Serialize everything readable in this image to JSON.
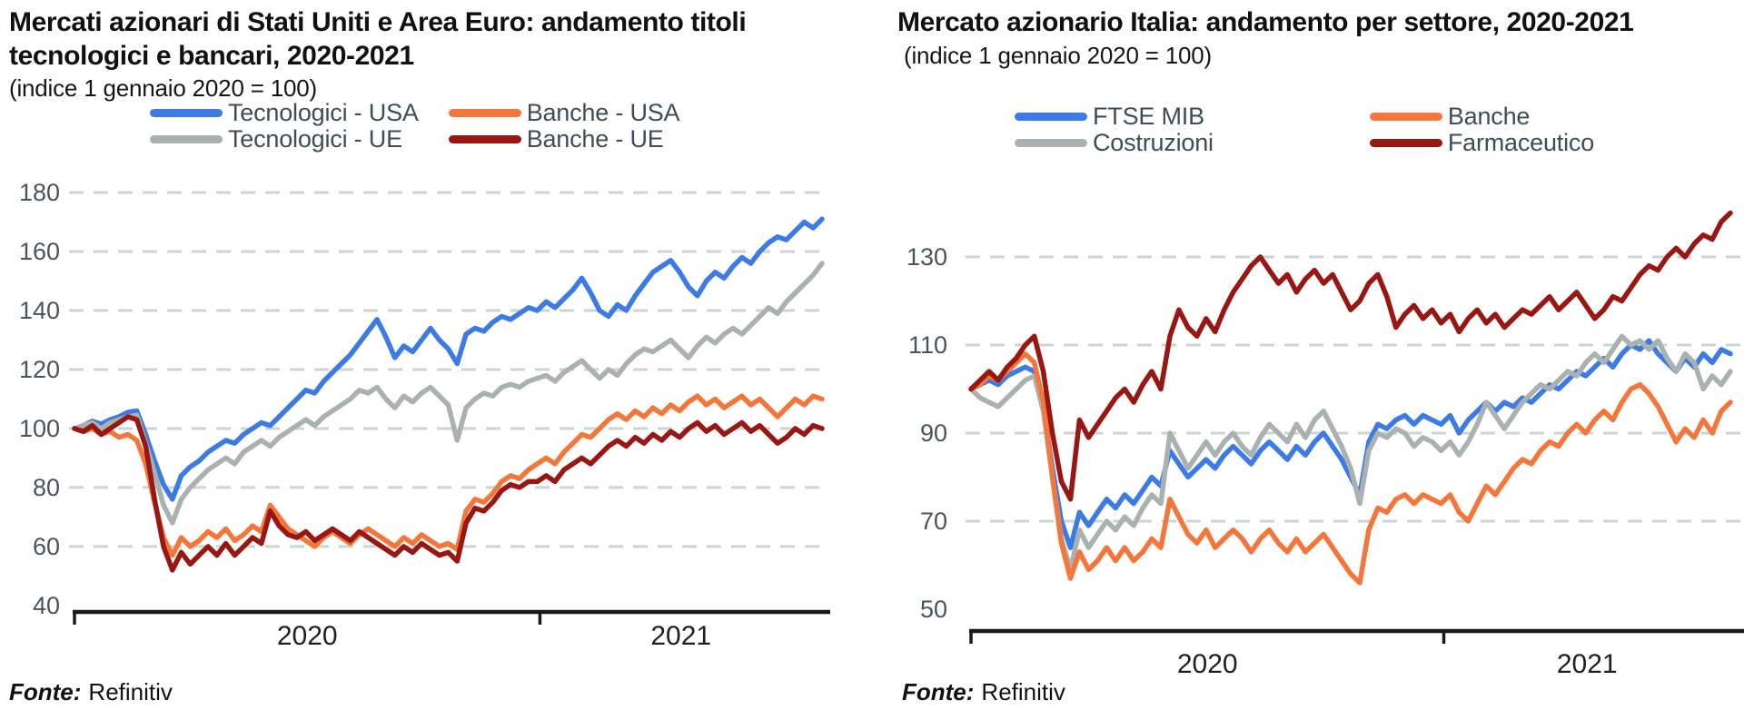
{
  "page": {
    "background": "#FFFFFF"
  },
  "styles": {
    "grid_color": "#CBD5D1",
    "axis_color": "#1A1A1A",
    "ytick_color": "#4A555A",
    "xtick_color": "#1F1F1F",
    "legend_text_color": "#3F4E54",
    "title_color": "#111111"
  },
  "chart_data": [
    {
      "type": "line",
      "title": "Mercati azionari di Stati Uniti e Area Euro: andamento titoli tecnologici e bancari, 2020-2021",
      "title_display_lines": [
        "Mercati azionari di Stati Uniti e Area Euro: andamento titoli",
        "tecnologici e bancari, 2020-2021"
      ],
      "subtitle": "(indice 1 gennaio 2020 = 100)",
      "source_label": "Fonte:",
      "source_value": "Refinitiv",
      "x_axis": {
        "tick_labels": [
          "2020",
          "2021"
        ],
        "boundary_week": 52.3,
        "weeks_total": 84
      },
      "ylim": [
        37.8,
        182.8
      ],
      "yticks": [
        40,
        60,
        80,
        100,
        120,
        140,
        160,
        180
      ],
      "grid": "horizontal-dashed",
      "legend_position": "top",
      "series": [
        {
          "name": "Tecnologici - USA",
          "color": "#3C7AE5",
          "values": [
            100,
            101,
            102.5,
            101.5,
            103,
            104,
            105.5,
            106,
            98,
            89,
            81,
            76,
            84,
            87,
            89,
            92,
            94,
            96,
            95,
            98,
            100,
            102,
            101,
            104,
            107,
            110,
            113,
            112,
            116,
            119,
            122,
            125,
            129,
            133,
            137,
            131,
            124,
            128,
            126,
            130,
            134,
            130,
            127,
            122,
            132,
            134,
            133,
            136,
            138,
            137,
            139,
            141,
            140,
            143,
            141,
            144,
            147,
            151,
            146,
            140,
            138,
            142,
            140,
            145,
            149,
            153,
            155,
            157,
            153,
            148,
            145,
            150,
            153,
            151,
            155,
            158,
            156,
            160,
            163,
            165,
            164,
            167,
            170,
            168,
            171
          ]
        },
        {
          "name": "Banche - USA",
          "color": "#F4763A",
          "values": [
            100,
            99,
            100,
            98,
            99,
            97,
            98,
            96,
            88,
            75,
            63,
            57,
            63,
            60,
            62,
            65,
            63,
            66,
            62,
            64,
            67,
            65,
            74,
            70,
            66,
            64,
            62,
            60,
            63,
            65,
            63,
            61,
            64,
            66,
            64,
            62,
            60,
            63,
            61,
            64,
            62,
            60,
            61,
            59,
            72,
            76,
            75,
            78,
            82,
            84,
            83,
            86,
            88,
            90,
            88,
            92,
            95,
            98,
            97,
            100,
            103,
            105,
            103,
            106,
            104,
            107,
            105,
            108,
            106,
            109,
            111,
            108,
            110,
            107,
            109,
            111,
            108,
            110,
            107,
            104,
            107,
            110,
            108,
            111,
            110
          ]
        },
        {
          "name": "Tecnologici - UE",
          "color": "#A9B2B0",
          "values": [
            100,
            101,
            102,
            100,
            102,
            103,
            104,
            104.5,
            95,
            85,
            74,
            68,
            76,
            80,
            83,
            86,
            88,
            90,
            88,
            92,
            94,
            96,
            94,
            97,
            99,
            101,
            103,
            101,
            104,
            106,
            108,
            110,
            113,
            112,
            114,
            110,
            107,
            111,
            109,
            112,
            114,
            111,
            108,
            96,
            107,
            110,
            112,
            111,
            114,
            115,
            114,
            116,
            117,
            118,
            116,
            119,
            121,
            123,
            120,
            117,
            120,
            118,
            122,
            125,
            127,
            126,
            128,
            130,
            127,
            124,
            128,
            131,
            129,
            132,
            134,
            132,
            135,
            138,
            141,
            139,
            143,
            146,
            149,
            152,
            156
          ]
        },
        {
          "name": "Banche - UE",
          "color": "#991712",
          "values": [
            100,
            99,
            101,
            98,
            100,
            102,
            104,
            103,
            94,
            76,
            60,
            52,
            58,
            54,
            57,
            60,
            57,
            61,
            57,
            60,
            63,
            61,
            72,
            67,
            64,
            63,
            65,
            62,
            64,
            66,
            64,
            62,
            65,
            63,
            61,
            59,
            57,
            60,
            58,
            61,
            59,
            57,
            58,
            55,
            68,
            73,
            72,
            75,
            79,
            81,
            80,
            82,
            82,
            84,
            82,
            86,
            88,
            90,
            88,
            91,
            94,
            96,
            94,
            97,
            95,
            98,
            96,
            99,
            97,
            100,
            102,
            99,
            101,
            98,
            100,
            102,
            99,
            101,
            98,
            95,
            97,
            100,
            98,
            101,
            100
          ]
        }
      ]
    },
    {
      "type": "line",
      "title": "Mercato azionario Italia: andamento per settore, 2020-2021",
      "title_display_lines": [
        "Mercato azionario Italia: andamento per settore, 2020-2021"
      ],
      "subtitle": "(indice 1 gennaio 2020 = 100)",
      "source_label": "Fonte:",
      "source_value": "Refinitiv",
      "x_axis": {
        "tick_labels": [
          "2020",
          "2021"
        ],
        "boundary_week": 52.3,
        "weeks_total": 84
      },
      "ylim": [
        45.05,
        146.5
      ],
      "yticks": [
        50,
        70,
        90,
        110,
        130
      ],
      "grid": "horizontal-dashed",
      "legend_position": "top",
      "series": [
        {
          "name": "FTSE MIB",
          "color": "#3C7AE5",
          "values": [
            100,
            101,
            102,
            101,
            103,
            104,
            105,
            104,
            96,
            82,
            70,
            64,
            72,
            69,
            72,
            75,
            73,
            76,
            74,
            77,
            80,
            78,
            86,
            83,
            80,
            82,
            84,
            82,
            85,
            87,
            85,
            83,
            86,
            88,
            86,
            84,
            87,
            85,
            88,
            90,
            87,
            84,
            80,
            76,
            88,
            92,
            91,
            93,
            94,
            92,
            94,
            93,
            92,
            94,
            90,
            93,
            95,
            97,
            95,
            97,
            96,
            98,
            97,
            99,
            101,
            100,
            102,
            104,
            103,
            105,
            107,
            105,
            108,
            110,
            109,
            111,
            108,
            106,
            104,
            107,
            105,
            108,
            106,
            109,
            108
          ]
        },
        {
          "name": "Banche",
          "color": "#F4763A",
          "values": [
            100,
            101,
            103,
            102,
            104,
            106,
            108,
            106,
            97,
            80,
            65,
            57,
            63,
            59,
            61,
            64,
            61,
            64,
            61,
            63,
            66,
            64,
            75,
            71,
            67,
            65,
            68,
            64,
            66,
            68,
            66,
            63,
            66,
            68,
            65,
            63,
            66,
            63,
            65,
            67,
            64,
            61,
            58,
            56,
            68,
            73,
            72,
            75,
            76,
            74,
            76,
            75,
            74,
            76,
            72,
            70,
            74,
            78,
            76,
            79,
            82,
            84,
            83,
            86,
            88,
            87,
            90,
            92,
            90,
            93,
            95,
            93,
            97,
            100,
            101,
            99,
            96,
            92,
            88,
            91,
            89,
            93,
            90,
            95,
            97
          ]
        },
        {
          "name": "Costruzioni",
          "color": "#A9B2B0",
          "values": [
            100,
            98,
            97,
            96,
            98,
            100,
            102,
            103,
            95,
            80,
            66,
            59,
            68,
            64,
            67,
            70,
            68,
            71,
            69,
            73,
            76,
            74,
            90,
            86,
            82,
            85,
            88,
            85,
            88,
            90,
            87,
            85,
            89,
            92,
            90,
            88,
            92,
            89,
            93,
            95,
            91,
            87,
            82,
            74,
            86,
            90,
            89,
            91,
            90,
            87,
            89,
            88,
            86,
            88,
            85,
            88,
            92,
            97,
            94,
            91,
            94,
            97,
            99,
            101,
            100,
            102,
            104,
            103,
            106,
            108,
            106,
            109,
            112,
            110,
            111,
            109,
            111,
            107,
            104,
            108,
            106,
            100,
            103,
            101,
            104
          ]
        },
        {
          "name": "Farmaceutico",
          "color": "#991712",
          "values": [
            100,
            102,
            104,
            102,
            105,
            107,
            110,
            112,
            104,
            90,
            79,
            75,
            93,
            89,
            92,
            95,
            98,
            100,
            97,
            101,
            104,
            100,
            112,
            118,
            114,
            112,
            116,
            113,
            118,
            122,
            125,
            128,
            130,
            127,
            124,
            126,
            122,
            125,
            127,
            124,
            126,
            122,
            118,
            120,
            124,
            126,
            121,
            114,
            117,
            119,
            116,
            118,
            115,
            117,
            113,
            116,
            118,
            115,
            117,
            114,
            116,
            118,
            117,
            119,
            121,
            118,
            120,
            122,
            119,
            116,
            118,
            121,
            120,
            123,
            126,
            128,
            127,
            130,
            132,
            130,
            133,
            135,
            134,
            138,
            140
          ]
        }
      ]
    }
  ]
}
